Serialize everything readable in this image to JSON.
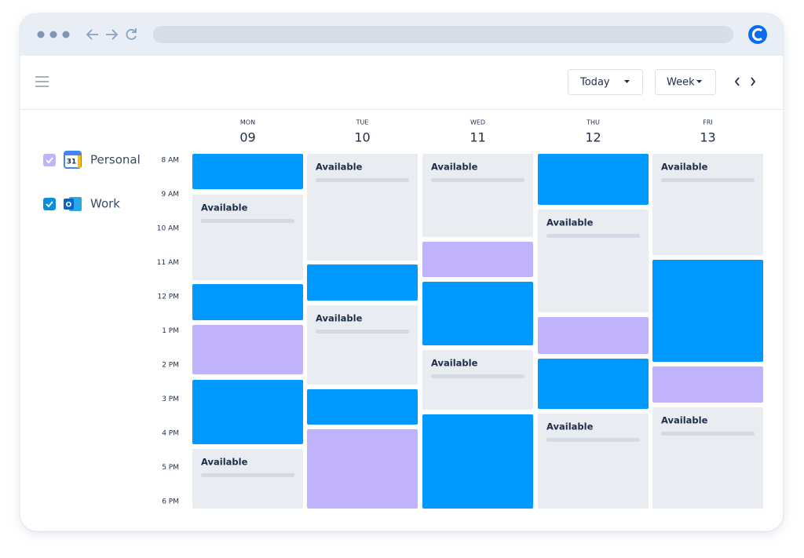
{
  "toolbar": {
    "today": "Today",
    "week": "Week"
  },
  "calendars": [
    {
      "name": "Personal",
      "icon_label": "31"
    },
    {
      "name": "Work",
      "icon_label": "O"
    }
  ],
  "times": [
    "8 AM",
    "9 AM",
    "10 AM",
    "11 AM",
    "12 PM",
    "1 PM",
    "2 PM",
    "3 PM",
    "4 PM",
    "5 PM",
    "6 PM"
  ],
  "days": [
    {
      "dow": "MON",
      "date": "09",
      "available": [
        "Available",
        "Available"
      ]
    },
    {
      "dow": "TUE",
      "date": "10",
      "available": [
        "Available",
        "Available"
      ]
    },
    {
      "dow": "WED",
      "date": "11",
      "available": [
        "Available",
        "Available"
      ]
    },
    {
      "dow": "THU",
      "date": "12",
      "available": [
        "Available",
        "Available"
      ]
    },
    {
      "dow": "FRI",
      "date": "13",
      "available": [
        "Available",
        "Available"
      ]
    }
  ]
}
